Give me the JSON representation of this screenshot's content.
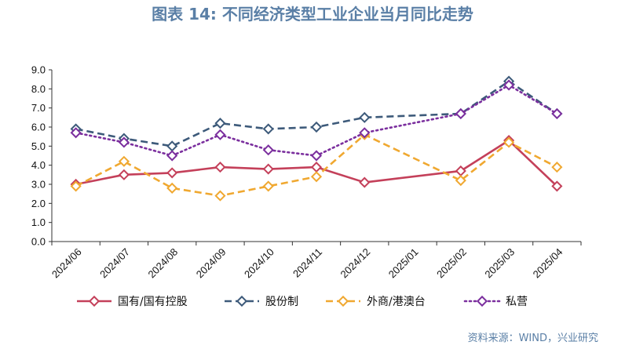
{
  "title": "图表 14: 不同经济类型工业企业当月同比走势",
  "source": "资料来源：WIND，兴业研究",
  "chart_data": {
    "type": "line",
    "categories": [
      "2024/06",
      "2024/07",
      "2024/08",
      "2024/09",
      "2024/10",
      "2024/11",
      "2024/12",
      "2025/01",
      "2025/02",
      "2025/03",
      "2025/04"
    ],
    "ylim": [
      0,
      9
    ],
    "yticks": [
      "0.0",
      "1.0",
      "2.0",
      "3.0",
      "4.0",
      "5.0",
      "6.0",
      "7.0",
      "8.0",
      "9.0"
    ],
    "grid": false,
    "legend_position": "bottom",
    "series": [
      {
        "name": "国有/国有控股",
        "color": "#c4405a",
        "style": "solid",
        "values": [
          3.0,
          3.5,
          3.6,
          3.9,
          3.8,
          3.9,
          3.1,
          null,
          3.7,
          5.3,
          2.9
        ]
      },
      {
        "name": "股份制",
        "color": "#3d5a7a",
        "style": "dash",
        "values": [
          5.9,
          5.4,
          5.0,
          6.2,
          5.9,
          6.0,
          6.5,
          null,
          6.7,
          8.4,
          6.7
        ]
      },
      {
        "name": "外商/港澳台",
        "color": "#f0a830",
        "style": "dash",
        "values": [
          2.9,
          4.2,
          2.8,
          2.4,
          2.9,
          3.4,
          5.6,
          null,
          3.2,
          5.2,
          3.9
        ]
      },
      {
        "name": "私营",
        "color": "#7b2f9e",
        "style": "dot",
        "values": [
          5.7,
          5.2,
          4.5,
          5.6,
          4.8,
          4.5,
          5.7,
          null,
          6.7,
          8.2,
          6.7
        ]
      }
    ]
  }
}
